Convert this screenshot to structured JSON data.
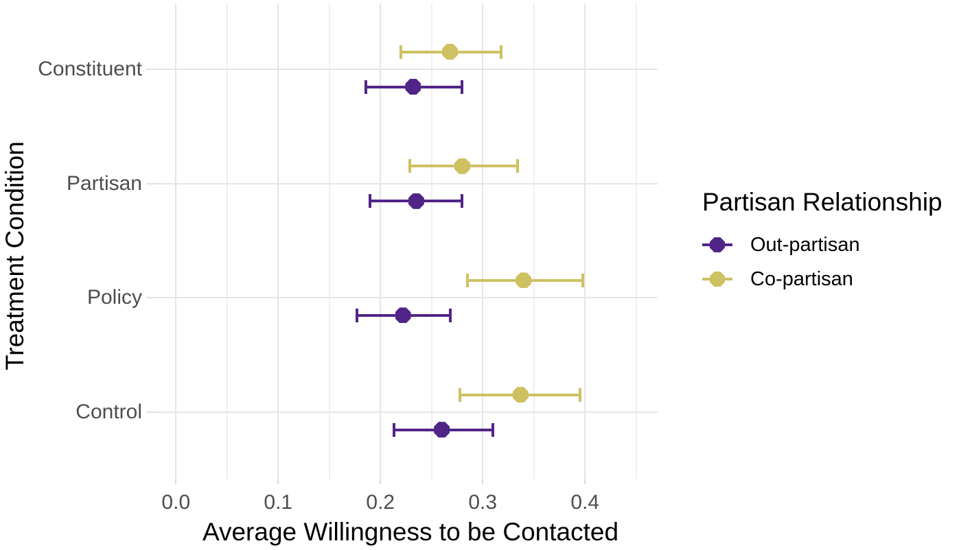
{
  "chart_data": {
    "type": "scatter",
    "subtype": "dot-and-whisker",
    "title": "",
    "xlabel": "Average Willingness to be Contacted",
    "ylabel": "Treatment Condition",
    "categories": [
      "Constituent",
      "Partisan",
      "Policy",
      "Control"
    ],
    "x_ticks": {
      "values": [
        0.0,
        0.1,
        0.2,
        0.3,
        0.4
      ],
      "labels": [
        "0.0",
        "0.1",
        "0.2",
        "0.3",
        "0.4"
      ]
    },
    "x_minor_gridlines": [
      0.05,
      0.15,
      0.25,
      0.35,
      0.45
    ],
    "xlim": [
      -0.021,
      0.471
    ],
    "grid": true,
    "legend": {
      "title": "Partisan Relationship",
      "position": "right",
      "entries": [
        {
          "label": "Out-partisan",
          "color": "#512588"
        },
        {
          "label": "Co-partisan",
          "color": "#cdc162"
        }
      ]
    },
    "series": [
      {
        "name": "Co-partisan",
        "color": "#cdc162",
        "points": [
          {
            "category": "Constituent",
            "value": 0.268,
            "ci_low": 0.22,
            "ci_high": 0.318
          },
          {
            "category": "Partisan",
            "value": 0.28,
            "ci_low": 0.229,
            "ci_high": 0.334
          },
          {
            "category": "Policy",
            "value": 0.34,
            "ci_low": 0.285,
            "ci_high": 0.398
          },
          {
            "category": "Control",
            "value": 0.337,
            "ci_low": 0.278,
            "ci_high": 0.395
          }
        ]
      },
      {
        "name": "Out-partisan",
        "color": "#512588",
        "points": [
          {
            "category": "Constituent",
            "value": 0.232,
            "ci_low": 0.186,
            "ci_high": 0.28
          },
          {
            "category": "Partisan",
            "value": 0.235,
            "ci_low": 0.19,
            "ci_high": 0.28
          },
          {
            "category": "Policy",
            "value": 0.222,
            "ci_low": 0.177,
            "ci_high": 0.268
          },
          {
            "category": "Control",
            "value": 0.26,
            "ci_low": 0.213,
            "ci_high": 0.31
          }
        ]
      }
    ],
    "colors": {
      "background": "#ffffff",
      "gridline_major": "#e5e5e5",
      "gridline_minor": "#efefef",
      "tick_label": "#4d4d4d",
      "axis_title": "#000000"
    }
  }
}
